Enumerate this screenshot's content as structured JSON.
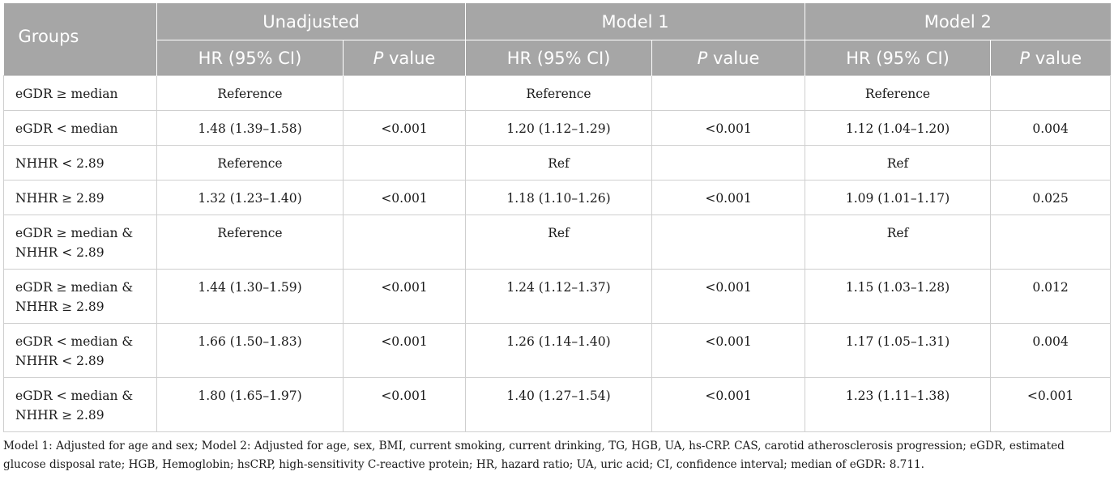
{
  "table": {
    "header": {
      "groups_label": "Groups",
      "models": [
        "Unadjusted",
        "Model 1",
        "Model 2"
      ],
      "hr_label": "HR (95% CI)",
      "p_label_italic": "P",
      "p_label_rest": " value"
    },
    "rows": [
      {
        "label": "eGDR ≥ median",
        "u_hr": "Reference",
        "u_p": "",
        "m1_hr": "Reference",
        "m1_p": "",
        "m2_hr": "Reference",
        "m2_p": ""
      },
      {
        "label": "eGDR < median",
        "u_hr": "1.48 (1.39–1.58)",
        "u_p": "<0.001",
        "m1_hr": "1.20 (1.12–1.29)",
        "m1_p": "<0.001",
        "m2_hr": "1.12 (1.04–1.20)",
        "m2_p": "0.004"
      },
      {
        "label": "NHHR < 2.89",
        "u_hr": "Reference",
        "u_p": "",
        "m1_hr": "Ref",
        "m1_p": "",
        "m2_hr": "Ref",
        "m2_p": ""
      },
      {
        "label": "NHHR ≥ 2.89",
        "u_hr": "1.32 (1.23–1.40)",
        "u_p": "<0.001",
        "m1_hr": "1.18 (1.10–1.26)",
        "m1_p": "<0.001",
        "m2_hr": "1.09 (1.01–1.17)",
        "m2_p": "0.025"
      },
      {
        "label_line1": "eGDR ≥ median &",
        "label_line2": "NHHR < 2.89",
        "u_hr": "Reference",
        "u_p": "",
        "m1_hr": "Ref",
        "m1_p": "",
        "m2_hr": "Ref",
        "m2_p": ""
      },
      {
        "label_line1": "eGDR ≥ median &",
        "label_line2": "NHHR ≥ 2.89",
        "u_hr": "1.44 (1.30–1.59)",
        "u_p": "<0.001",
        "m1_hr": "1.24 (1.12–1.37)",
        "m1_p": "<0.001",
        "m2_hr": "1.15 (1.03–1.28)",
        "m2_p": "0.012"
      },
      {
        "label_line1": "eGDR < median &",
        "label_line2": "NHHR < 2.89",
        "u_hr": "1.66 (1.50–1.83)",
        "u_p": "<0.001",
        "m1_hr": "1.26 (1.14–1.40)",
        "m1_p": "<0.001",
        "m2_hr": "1.17 (1.05–1.31)",
        "m2_p": "0.004"
      },
      {
        "label_line1": "eGDR < median &",
        "label_line2": "NHHR ≥ 2.89",
        "u_hr": "1.80 (1.65–1.97)",
        "u_p": "<0.001",
        "m1_hr": "1.40 (1.27–1.54)",
        "m1_p": "<0.001",
        "m2_hr": "1.23 (1.11–1.38)",
        "m2_p": "<0.001"
      }
    ]
  },
  "footnote": "Model 1: Adjusted for age and sex; Model 2: Adjusted for age, sex, BMI, current smoking, current drinking, TG, HGB, UA, hs-CRP. CAS, carotid atherosclerosis progression; eGDR, estimated glucose disposal rate; HGB, Hemoglobin; hsCRP, high-sensitivity C-reactive protein; HR, hazard ratio; UA, uric acid; CI, confidence interval; median of eGDR: 8.711.",
  "colors": {
    "header_bg": "#a6a6a6",
    "header_text": "#ffffff",
    "grid": "#cfcfcf"
  }
}
